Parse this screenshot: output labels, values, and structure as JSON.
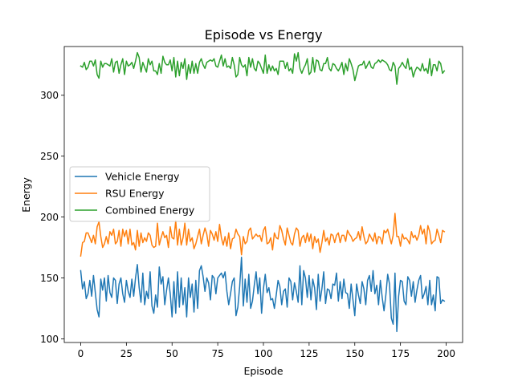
{
  "chart_data": {
    "type": "line",
    "title": "Episode vs Energy",
    "xlabel": "Episode",
    "ylabel": "Energy",
    "xlim": [
      -9,
      209
    ],
    "ylim": [
      97,
      340
    ],
    "xticks": [
      0,
      25,
      50,
      75,
      100,
      125,
      150,
      175,
      200
    ],
    "yticks": [
      100,
      150,
      200,
      250,
      300
    ],
    "legend_position": "center-left",
    "grid": false,
    "x_start": 0,
    "x_step": 1,
    "series": [
      {
        "name": "Vehicle Energy",
        "color": "#1f77b4",
        "values": [
          156,
          141,
          147,
          133,
          137,
          148,
          135,
          152,
          138,
          124,
          118,
          149,
          140,
          150,
          131,
          152,
          138,
          134,
          150,
          148,
          129,
          145,
          150,
          137,
          130,
          148,
          139,
          134,
          149,
          135,
          150,
          161,
          142,
          130,
          154,
          128,
          139,
          133,
          155,
          127,
          121,
          136,
          126,
          159,
          145,
          151,
          128,
          140,
          150,
          137,
          118,
          147,
          121,
          155,
          126,
          150,
          128,
          142,
          118,
          150,
          134,
          145,
          122,
          148,
          125,
          156,
          160,
          151,
          139,
          150,
          146,
          132,
          152,
          150,
          137,
          150,
          152,
          154,
          150,
          155,
          139,
          128,
          137,
          147,
          150,
          119,
          126,
          143,
          167,
          127,
          149,
          130,
          153,
          125,
          131,
          144,
          155,
          137,
          150,
          121,
          141,
          153,
          138,
          142,
          132,
          133,
          125,
          136,
          148,
          143,
          128,
          139,
          141,
          126,
          150,
          147,
          132,
          146,
          139,
          130,
          160,
          128,
          156,
          150,
          134,
          152,
          132,
          149,
          142,
          124,
          153,
          131,
          141,
          155,
          129,
          141,
          140,
          133,
          145,
          144,
          154,
          131,
          147,
          133,
          149,
          138,
          137,
          125,
          145,
          132,
          119,
          145,
          136,
          129,
          147,
          141,
          128,
          148,
          152,
          139,
          156,
          137,
          144,
          128,
          148,
          134,
          123,
          136,
          153,
          145,
          117,
          112,
          154,
          106,
          135,
          148,
          147,
          131,
          128,
          151,
          148,
          135,
          147,
          130,
          140,
          148,
          152,
          133,
          137,
          143,
          128,
          148,
          128,
          136,
          123,
          151,
          150,
          129,
          132,
          131
        ]
      },
      {
        "name": "RSU Energy",
        "color": "#ff7f0e",
        "values": [
          168,
          179,
          180,
          187,
          187,
          183,
          179,
          185,
          178,
          192,
          196,
          184,
          175,
          178,
          184,
          178,
          188,
          185,
          190,
          178,
          180,
          189,
          176,
          190,
          184,
          189,
          178,
          190,
          177,
          179,
          173,
          189,
          176,
          187,
          179,
          183,
          180,
          187,
          185,
          177,
          175,
          176,
          195,
          177,
          183,
          188,
          183,
          185,
          175,
          192,
          183,
          182,
          197,
          177,
          190,
          177,
          183,
          195,
          177,
          190,
          180,
          183,
          174,
          178,
          184,
          190,
          178,
          185,
          191,
          186,
          176,
          189,
          186,
          181,
          188,
          180,
          194,
          183,
          177,
          184,
          176,
          187,
          174,
          182,
          183,
          190,
          186,
          184,
          169,
          184,
          178,
          180,
          189,
          191,
          182,
          184,
          186,
          184,
          185,
          180,
          189,
          192,
          178,
          179,
          183,
          173,
          187,
          183,
          182,
          193,
          189,
          182,
          177,
          191,
          185,
          179,
          177,
          186,
          191,
          189,
          176,
          183,
          185,
          179,
          187,
          180,
          186,
          174,
          184,
          179,
          182,
          171,
          179,
          189,
          180,
          183,
          177,
          186,
          185,
          179,
          185,
          187,
          179,
          185,
          185,
          180,
          189,
          186,
          184,
          180,
          182,
          183,
          188,
          181,
          192,
          184,
          178,
          180,
          186,
          183,
          180,
          187,
          178,
          184,
          183,
          178,
          189,
          187,
          190,
          184,
          178,
          185,
          203,
          184,
          184,
          176,
          186,
          182,
          183,
          181,
          178,
          188,
          183,
          185,
          181,
          185,
          193,
          186,
          190,
          178,
          193,
          188,
          178,
          180,
          181,
          190,
          185,
          179,
          189,
          188
        ]
      },
      {
        "name": "Combined Energy",
        "color": "#2ca02c",
        "values": [
          324,
          323,
          327,
          321,
          323,
          328,
          328,
          324,
          329,
          317,
          314,
          328,
          323,
          326,
          326,
          325,
          324,
          330,
          319,
          327,
          328,
          318,
          325,
          330,
          317,
          328,
          324,
          325,
          327,
          322,
          328,
          335,
          331,
          319,
          327,
          323,
          319,
          330,
          325,
          328,
          320,
          320,
          317,
          326,
          318,
          332,
          327,
          325,
          325,
          329,
          320,
          331,
          315,
          328,
          316,
          327,
          322,
          330,
          313,
          325,
          318,
          328,
          318,
          326,
          318,
          327,
          330,
          325,
          322,
          327,
          328,
          329,
          328,
          330,
          324,
          323,
          328,
          333,
          324,
          330,
          323,
          324,
          322,
          331,
          325,
          315,
          317,
          331,
          325,
          323,
          325,
          316,
          331,
          323,
          330,
          322,
          320,
          328,
          326,
          322,
          318,
          333,
          318,
          325,
          320,
          324,
          320,
          322,
          317,
          328,
          328,
          328,
          322,
          327,
          320,
          322,
          318,
          334,
          328,
          335,
          322,
          318,
          322,
          325,
          330,
          317,
          319,
          331,
          319,
          329,
          328,
          321,
          320,
          326,
          326,
          331,
          322,
          320,
          326,
          325,
          322,
          320,
          323,
          327,
          317,
          326,
          320,
          330,
          326,
          321,
          312,
          318,
          324,
          325,
          325,
          328,
          322,
          325,
          328,
          323,
          322,
          326,
          327,
          329,
          327,
          329,
          328,
          327,
          325,
          321,
          320,
          327,
          324,
          309,
          322,
          324,
          327,
          324,
          322,
          330,
          321,
          323,
          315,
          320,
          323,
          322,
          320,
          326,
          320,
          322,
          318,
          330,
          316,
          325,
          325,
          320,
          328,
          326,
          318,
          320
        ]
      }
    ]
  }
}
